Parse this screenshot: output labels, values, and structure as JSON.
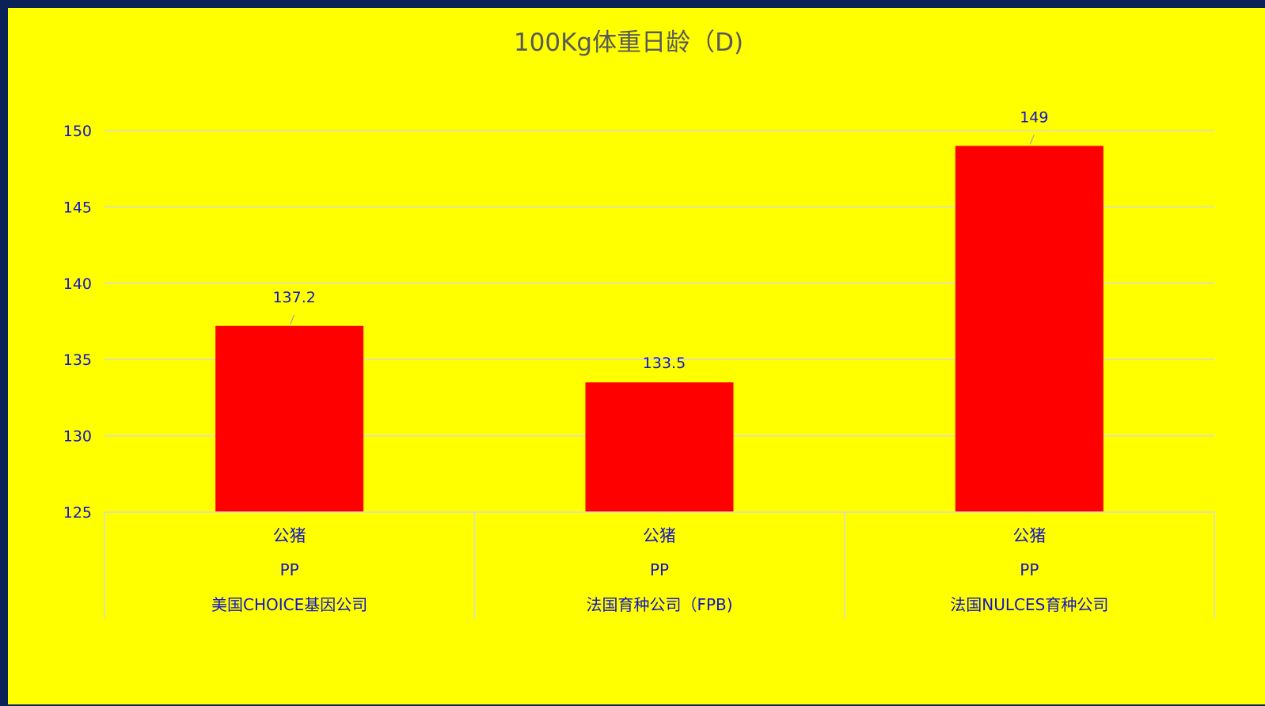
{
  "colors": {
    "outer_background": "#0b2258",
    "chart_background": "#ffff00",
    "bar": "#ff0000",
    "text": "#1414c8",
    "title": "#595959",
    "grid": "#d9d9d9"
  },
  "chart_data": {
    "type": "bar",
    "title": "100Kg体重日龄（D)",
    "xlabel": "",
    "ylabel": "",
    "ylim": [
      125,
      150
    ],
    "yticks": [
      125,
      130,
      135,
      140,
      145,
      150
    ],
    "grid": true,
    "legend": "none",
    "categories": [
      {
        "level1": "公猪",
        "level2": "PP",
        "level3": "美国CHOICE基因公司"
      },
      {
        "level1": "公猪",
        "level2": "PP",
        "level3": "法国育种公司（FPB)"
      },
      {
        "level1": "公猪",
        "level2": "PP",
        "level3": "法国NULCES育种公司"
      }
    ],
    "values": [
      137.2,
      133.5,
      149
    ],
    "data_labels": [
      "137.2",
      "133.5",
      "149"
    ]
  }
}
